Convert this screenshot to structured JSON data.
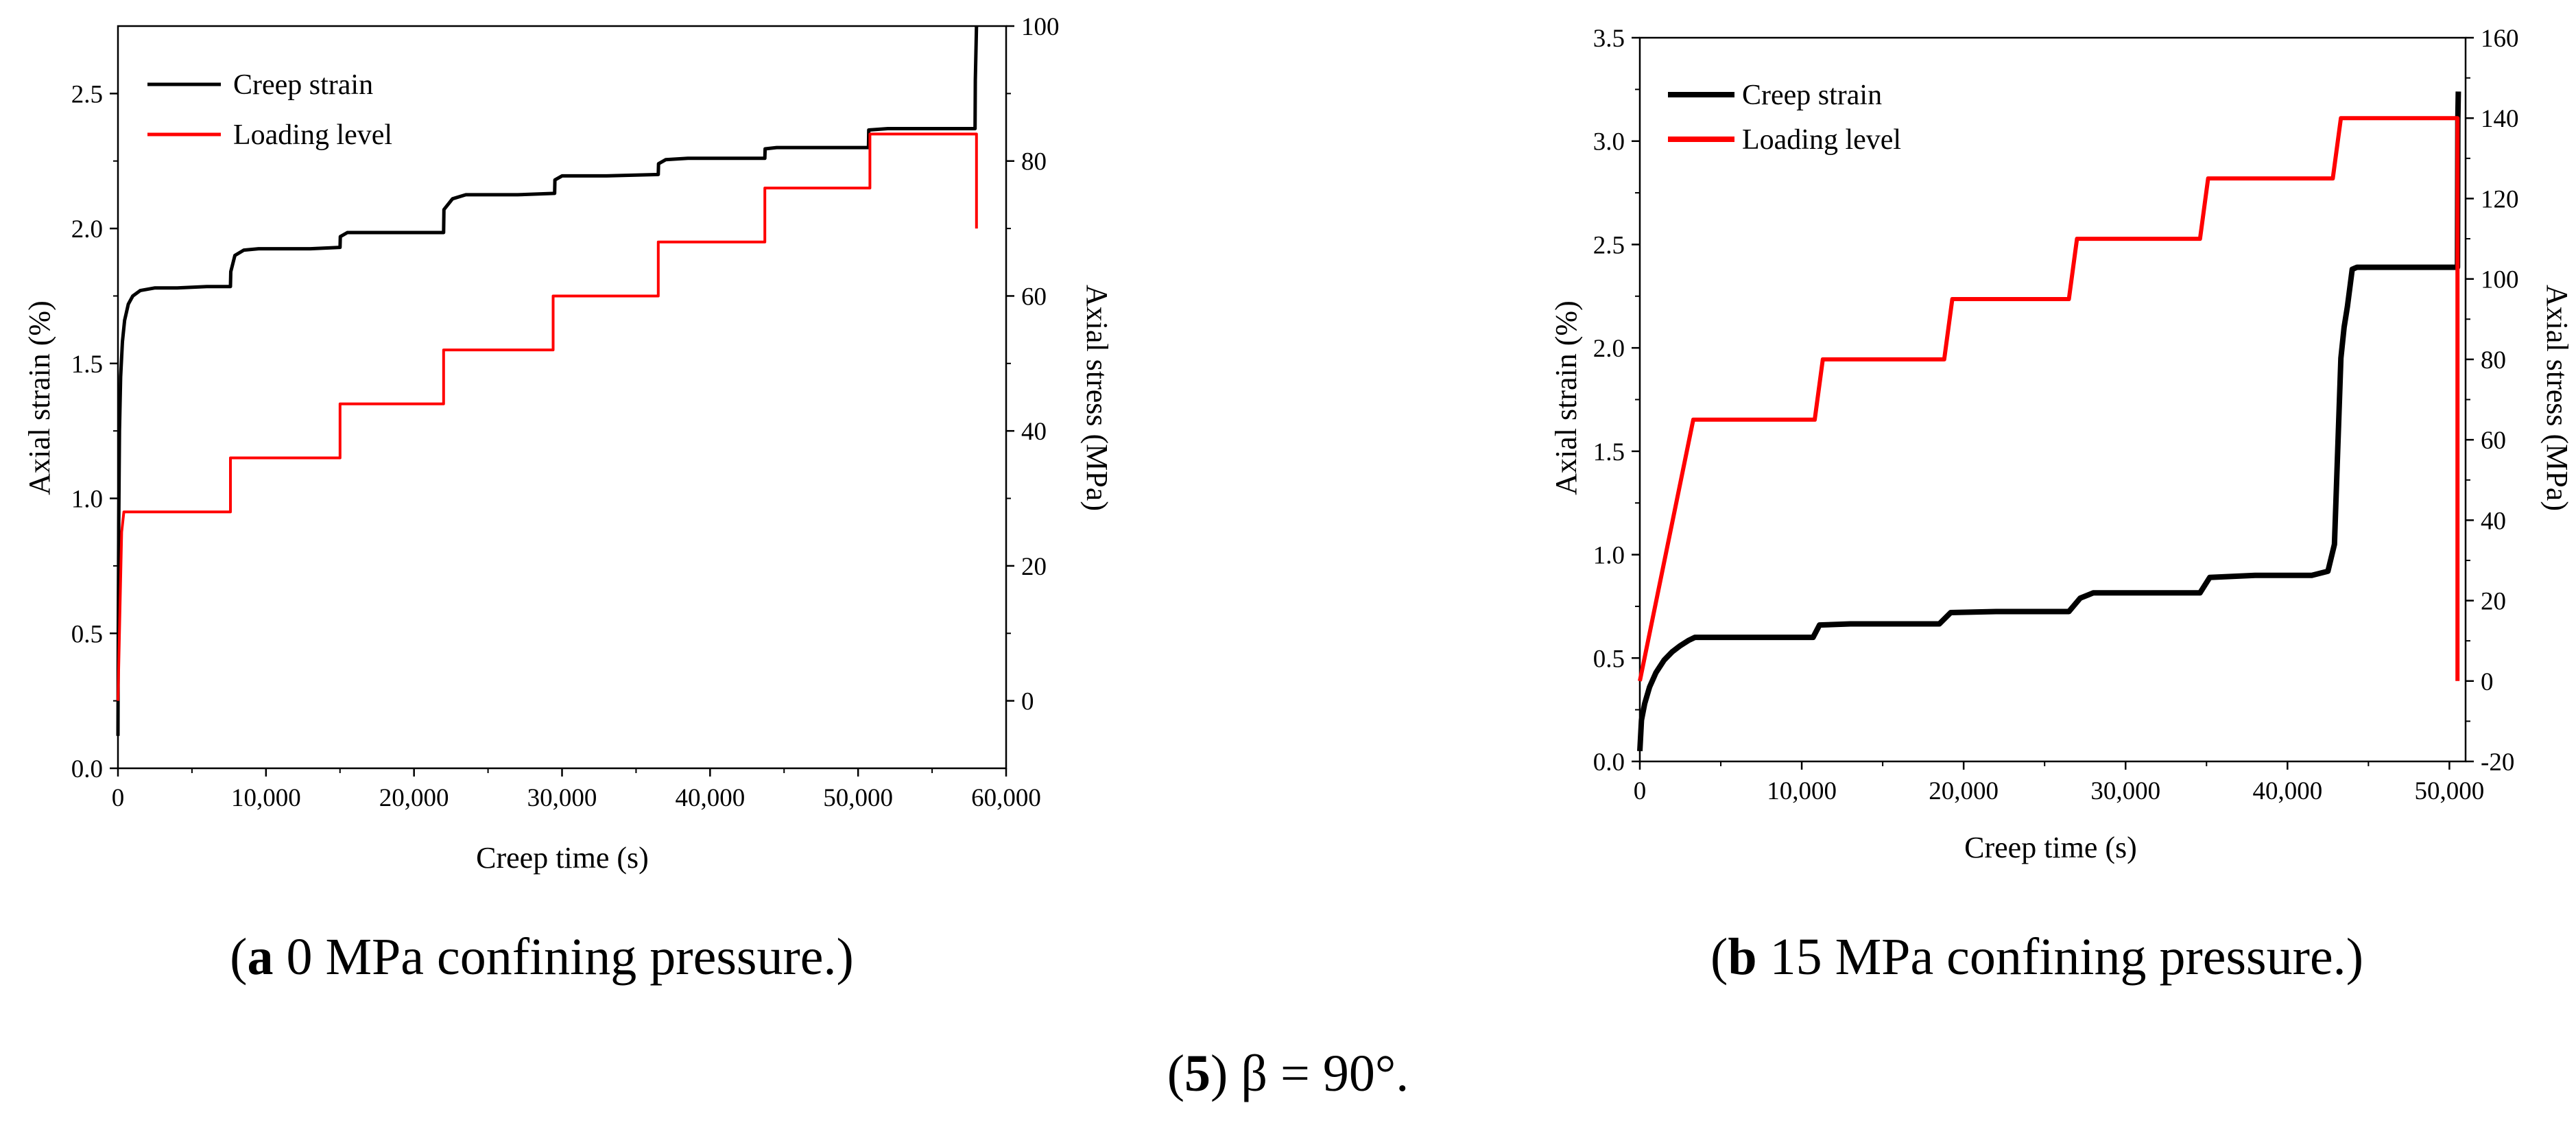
{
  "figure_caption": {
    "number": "5",
    "text": " β = 90°."
  },
  "panels": [
    {
      "caption_letter": "a",
      "caption_text": " 0 MPa confining pressure."
    },
    {
      "caption_letter": "b",
      "caption_text": " 15 MPa confining pressure."
    }
  ],
  "colors": {
    "creep": "#000000",
    "loading": "#ff0000"
  },
  "chart_data": [
    {
      "type": "line",
      "title": "(a) 0 MPa confining pressure.",
      "xlabel": "Creep time (s)",
      "ylabel": "Axial strain (%)",
      "y2label": "Axial stress (MPa)",
      "xlim": [
        0,
        60000
      ],
      "ylim": [
        0,
        2.75
      ],
      "y2lim": [
        -10,
        100
      ],
      "x_ticks": [
        0,
        10000,
        20000,
        30000,
        40000,
        50000,
        60000
      ],
      "x_tick_labels": [
        "0",
        "10,000",
        "20,000",
        "30,000",
        "40,000",
        "50,000",
        "60,000"
      ],
      "y_ticks": [
        0.0,
        0.5,
        1.0,
        1.5,
        2.0,
        2.5
      ],
      "y_tick_labels": [
        "0.0",
        "0.5",
        "1.0",
        "1.5",
        "2.0",
        "2.5"
      ],
      "y2_ticks": [
        0,
        20,
        40,
        60,
        80,
        100
      ],
      "y2_tick_labels": [
        "0",
        "20",
        "40",
        "60",
        "80",
        "100"
      ],
      "legend": [
        "Creep strain",
        "Loading level"
      ],
      "legend_position": "top-left",
      "series": [
        {
          "name": "Creep strain",
          "axis": "left",
          "x": [
            0,
            20,
            50,
            100,
            180,
            300,
            450,
            700,
            1000,
            1500,
            2500,
            4000,
            6000,
            7600,
            7620,
            7900,
            8500,
            9500,
            11000,
            13000,
            15000,
            15020,
            15500,
            17000,
            19000,
            22000,
            22020,
            22600,
            23500,
            25000,
            27000,
            29500,
            29520,
            30000,
            31000,
            33000,
            36500,
            36520,
            37000,
            38500,
            40000,
            42000,
            43700,
            43720,
            44500,
            47000,
            50700,
            50720,
            52000,
            55000,
            57900,
            57920,
            58000
          ],
          "y": [
            0.12,
            0.5,
            0.9,
            1.25,
            1.45,
            1.58,
            1.66,
            1.72,
            1.75,
            1.77,
            1.78,
            1.78,
            1.785,
            1.785,
            1.84,
            1.9,
            1.92,
            1.925,
            1.925,
            1.925,
            1.93,
            1.97,
            1.985,
            1.985,
            1.985,
            1.985,
            2.07,
            2.11,
            2.125,
            2.125,
            2.125,
            2.13,
            2.18,
            2.195,
            2.195,
            2.195,
            2.2,
            2.24,
            2.255,
            2.26,
            2.26,
            2.26,
            2.26,
            2.295,
            2.3,
            2.3,
            2.3,
            2.365,
            2.37,
            2.37,
            2.37,
            2.55,
            2.75
          ]
        },
        {
          "name": "Loading level",
          "axis": "right",
          "x": [
            0,
            250,
            400,
            7600,
            7600,
            15000,
            15000,
            22000,
            22000,
            29400,
            29400,
            36500,
            36500,
            43700,
            43700,
            50800,
            50800,
            58000,
            58000
          ],
          "y": [
            0,
            25,
            28,
            28,
            36,
            36,
            44,
            44,
            52,
            52,
            60,
            60,
            68,
            68,
            76,
            76,
            84,
            84,
            70
          ]
        }
      ]
    },
    {
      "type": "line",
      "title": "(b) 15 MPa confining pressure.",
      "xlabel": "Creep time (s)",
      "ylabel": "Axial strain (%)",
      "y2label": "Axial stress (MPa)",
      "xlim": [
        0,
        51000
      ],
      "ylim": [
        0,
        3.5
      ],
      "y2lim": [
        -20,
        160
      ],
      "x_ticks": [
        0,
        10000,
        20000,
        30000,
        40000,
        50000
      ],
      "x_tick_labels": [
        "0",
        "10,000",
        "20,000",
        "30,000",
        "40,000",
        "50,000"
      ],
      "y_ticks": [
        0.0,
        0.5,
        1.0,
        1.5,
        2.0,
        2.5,
        3.0,
        3.5
      ],
      "y_tick_labels": [
        "0.0",
        "0.5",
        "1.0",
        "1.5",
        "2.0",
        "2.5",
        "3.0",
        "3.5"
      ],
      "y2_ticks": [
        -20,
        0,
        20,
        40,
        60,
        80,
        100,
        120,
        140,
        160
      ],
      "y2_tick_labels": [
        "-20",
        "0",
        "20",
        "40",
        "60",
        "80",
        "100",
        "120",
        "140",
        "160"
      ],
      "legend": [
        "Creep strain",
        "Loading level"
      ],
      "legend_position": "top-left",
      "series": [
        {
          "name": "Creep strain",
          "axis": "left",
          "x": [
            0,
            100,
            300,
            600,
            1000,
            1500,
            2000,
            2500,
            3000,
            3400,
            5000,
            8000,
            10700,
            11100,
            13000,
            16000,
            18500,
            19200,
            22000,
            26500,
            27200,
            28000,
            31000,
            34600,
            35200,
            38000,
            41500,
            42500,
            42900,
            43100,
            43300,
            43500,
            43700,
            44000,
            44300,
            47000,
            50500,
            50520,
            50550
          ],
          "y": [
            0.05,
            0.2,
            0.28,
            0.36,
            0.43,
            0.49,
            0.53,
            0.56,
            0.585,
            0.6,
            0.6,
            0.6,
            0.6,
            0.66,
            0.665,
            0.665,
            0.665,
            0.72,
            0.725,
            0.725,
            0.79,
            0.815,
            0.815,
            0.815,
            0.89,
            0.9,
            0.9,
            0.92,
            1.05,
            1.5,
            1.95,
            2.1,
            2.2,
            2.38,
            2.39,
            2.39,
            2.39,
            3.1,
            3.24
          ]
        },
        {
          "name": "Loading level",
          "axis": "right",
          "x": [
            0,
            3300,
            10800,
            11300,
            18800,
            19300,
            26500,
            27000,
            34600,
            35100,
            42800,
            43300,
            50500,
            50500
          ],
          "y": [
            0,
            65,
            65,
            80,
            80,
            95,
            95,
            110,
            110,
            125,
            125,
            140,
            140,
            0
          ]
        }
      ]
    }
  ]
}
